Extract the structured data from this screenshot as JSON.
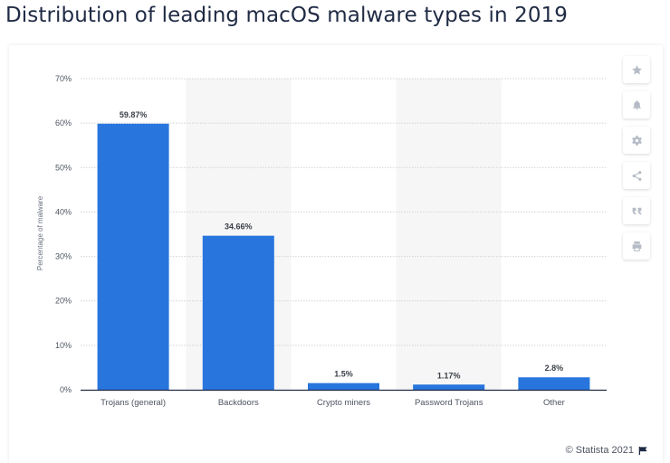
{
  "page": {
    "title": "Distribution of leading macOS malware types in 2019"
  },
  "toolbar": {
    "icons": [
      "star-icon",
      "bell-icon",
      "gear-icon",
      "share-icon",
      "quote-icon",
      "print-icon"
    ]
  },
  "footer": {
    "credit": "© Statista 2021"
  },
  "colors": {
    "bar": "#2876dd",
    "band": "#f6f6f6",
    "grid": "#cfd3d8",
    "axis": "#1f2a44",
    "text": "#4d5461"
  },
  "chart_data": {
    "type": "bar",
    "title": "Distribution of leading macOS malware types in 2019",
    "xlabel": "",
    "ylabel": "Percentage of malware",
    "categories": [
      "Trojans (general)",
      "Backdoors",
      "Crypto miners",
      "Password Trojans",
      "Other"
    ],
    "values": [
      59.87,
      34.66,
      1.5,
      1.17,
      2.8
    ],
    "value_labels": [
      "59.87%",
      "34.66%",
      "1.5%",
      "1.17%",
      "2.8%"
    ],
    "ylim": [
      0,
      70
    ],
    "yticks": [
      0,
      10,
      20,
      30,
      40,
      50,
      60,
      70
    ],
    "ytick_labels": [
      "0%",
      "10%",
      "20%",
      "30%",
      "40%",
      "50%",
      "60%",
      "70%"
    ],
    "grid": true,
    "alternate_bands": true,
    "legend": "none"
  }
}
